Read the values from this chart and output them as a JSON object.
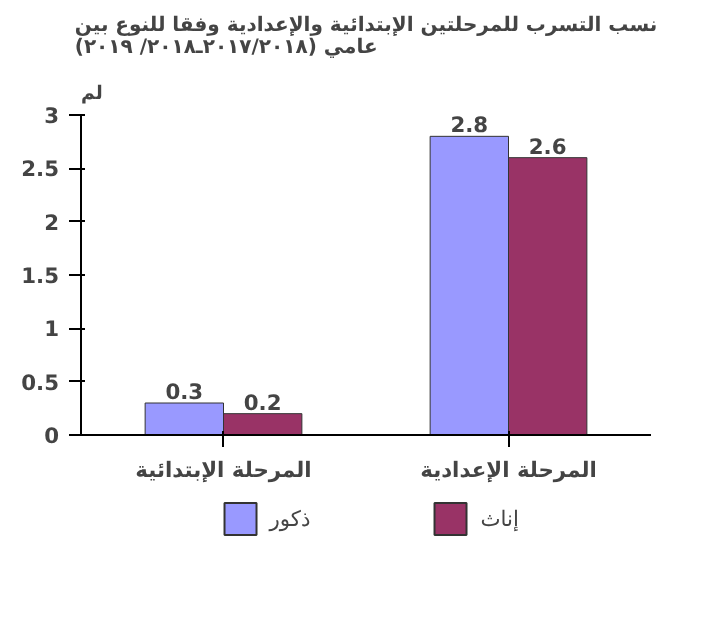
{
  "chart_data": {
    "type": "bar",
    "title": "نسب التسرب للمرحلتين الإبتدائية والإعدادية وفقا للنوع بين\nعامي (٢٠١٧/٢٠١٨ـ٢٠١٨/ ٢٠١٩)",
    "ylabel": "لم",
    "categories": [
      "المرحلة الإبتدائية",
      "المرحلة الإعدادية"
    ],
    "series": [
      {
        "name": "ذكور",
        "color": "#9999ff",
        "values": [
          0.3,
          2.8
        ]
      },
      {
        "name": "إناث",
        "color": "#993366",
        "values": [
          0.2,
          2.6
        ]
      }
    ],
    "ylim": [
      0,
      3
    ],
    "yticks": [
      0,
      0.5,
      1,
      1.5,
      2,
      2.5,
      3
    ],
    "grid": false,
    "legend": "bottom",
    "data_labels": true
  }
}
